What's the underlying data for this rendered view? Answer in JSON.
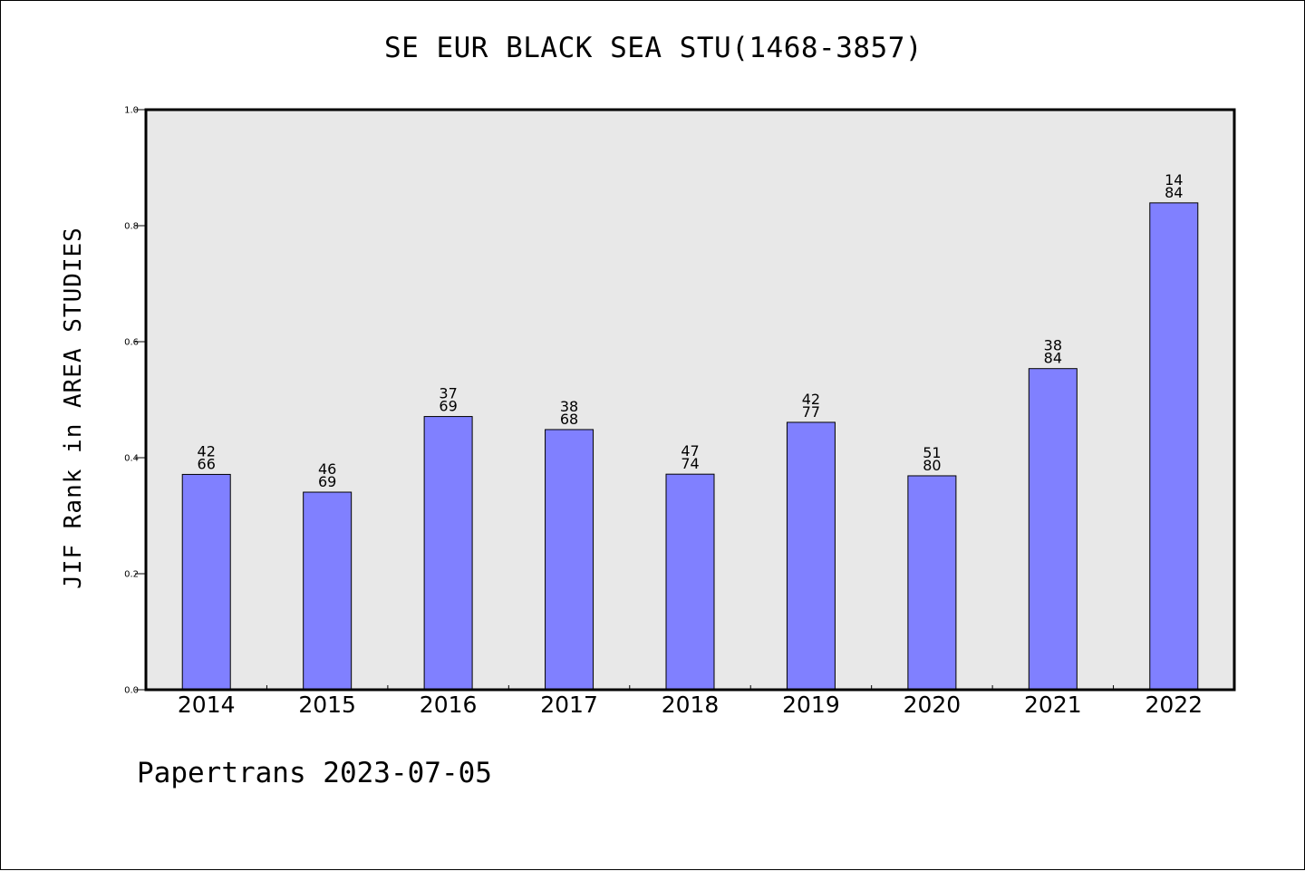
{
  "title": "SE EUR BLACK SEA STU(1468-3857)",
  "footer": "Papertrans 2023-07-05",
  "colors": {
    "bar": "#8080ff",
    "plot_background": "#e8e8e8",
    "page_background": "#ffffff"
  },
  "chart_data": {
    "type": "bar",
    "title": "SE EUR BLACK SEA STU(1468-3857)",
    "xlabel": "",
    "ylabel": "JIF Rank in AREA STUDIES",
    "ylim": [
      0,
      1.0
    ],
    "yticks": [
      "0.0",
      "0.2",
      "0.4",
      "0.6",
      "0.8",
      "1.0"
    ],
    "grid": false,
    "categories": [
      "2014",
      "2015",
      "2016",
      "2017",
      "2018",
      "2019",
      "2020",
      "2021",
      "2022"
    ],
    "values": [
      0.3712,
      0.3406,
      0.471,
      0.4485,
      0.3716,
      0.461,
      0.3688,
      0.5536,
      0.8393
    ],
    "annotations": [
      [
        "42",
        "66"
      ],
      [
        "46",
        "69"
      ],
      [
        "37",
        "69"
      ],
      [
        "38",
        "68"
      ],
      [
        "47",
        "74"
      ],
      [
        "42",
        "77"
      ],
      [
        "51",
        "80"
      ],
      [
        "38",
        "84"
      ],
      [
        "14",
        "84"
      ]
    ]
  }
}
